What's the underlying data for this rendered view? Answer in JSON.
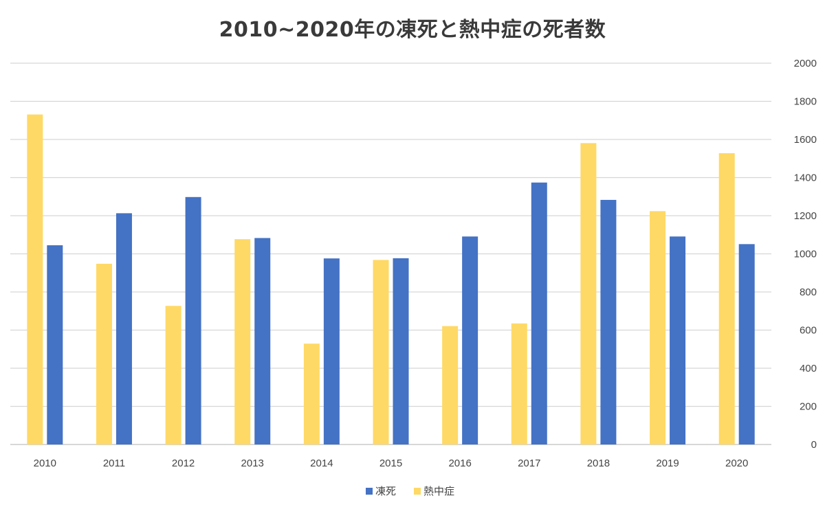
{
  "chart_data": {
    "type": "bar",
    "title": "2010~2020年の凍死と熱中症の死者数",
    "categories": [
      "2010",
      "2011",
      "2012",
      "2013",
      "2014",
      "2015",
      "2016",
      "2017",
      "2018",
      "2019",
      "2020"
    ],
    "series": [
      {
        "name": "凍死",
        "color": "#4472C4",
        "values": [
          1045,
          1213,
          1298,
          1083,
          976,
          977,
          1091,
          1374,
          1283,
          1091,
          1051
        ]
      },
      {
        "name": "熱中症",
        "color": "#FFD966",
        "values": [
          1731,
          948,
          727,
          1077,
          529,
          968,
          621,
          635,
          1581,
          1224,
          1528
        ]
      }
    ],
    "bar_order": [
      "熱中症",
      "凍死"
    ],
    "ylim": [
      0,
      2000
    ],
    "yticks": [
      0,
      200,
      400,
      600,
      800,
      1000,
      1200,
      1400,
      1600,
      1800,
      2000
    ],
    "y_axis_side": "right",
    "grid": true,
    "legend_position": "bottom"
  }
}
